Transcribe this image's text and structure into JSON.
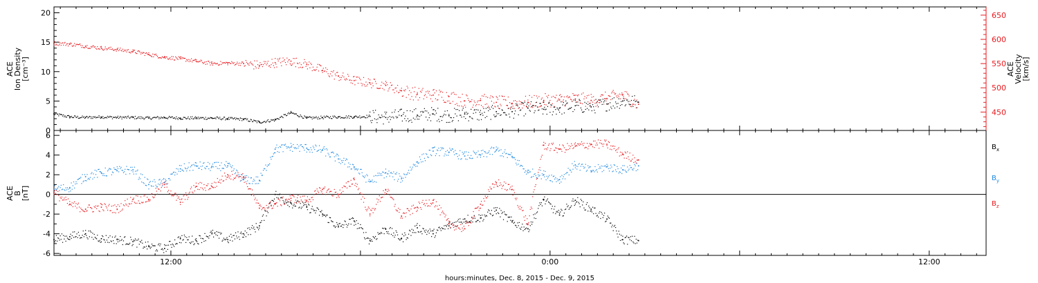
{
  "chart_data": [
    {
      "type": "scatter",
      "panel": "top",
      "ylabel_left": [
        "ACE",
        "Ion Density",
        "[cm⁻³]"
      ],
      "ylabel_right": [
        "ACE",
        "Velocity",
        "[km/s]"
      ],
      "ylim_left": [
        0,
        21
      ],
      "yticks_left": [
        "0",
        "5",
        "10",
        "15",
        "20"
      ],
      "ylim_right": [
        412,
        667
      ],
      "yticks_right": [
        "450",
        "500",
        "550",
        "600",
        "650"
      ],
      "colors": {
        "density": "#000000",
        "velocity": "#e8191e",
        "right_axis": "#e8191e"
      },
      "series": [
        {
          "axis": "left",
          "x_hours": [
            0,
            1,
            2,
            3,
            4,
            5,
            6,
            7,
            8,
            9,
            10,
            11,
            12,
            13,
            14,
            15,
            16,
            17,
            18,
            19,
            20,
            21,
            22,
            23,
            24,
            25,
            26,
            27,
            28,
            29,
            30,
            31,
            32,
            33,
            34,
            35,
            36,
            37
          ],
          "values": [
            2.8,
            2.3,
            2.2,
            2.3,
            2.2,
            2.2,
            2.1,
            2.2,
            2.1,
            2.1,
            2.1,
            2.0,
            1.9,
            1.4,
            1.8,
            3.0,
            2.1,
            2.2,
            2.3,
            2.3,
            2.4,
            2.2,
            2.5,
            2.6,
            2.8,
            2.5,
            2.8,
            2.7,
            3.2,
            3.2,
            3.8,
            3.6,
            3.8,
            4.2,
            4.0,
            4.5,
            5.0,
            4.8
          ]
        },
        {
          "axis": "right",
          "x_hours": [
            0,
            1,
            2,
            3,
            4,
            5,
            6,
            7,
            8,
            9,
            10,
            11,
            12,
            13,
            14,
            15,
            16,
            17,
            18,
            19,
            20,
            21,
            22,
            23,
            24,
            25,
            26,
            27,
            28,
            29,
            30,
            31,
            32,
            33,
            34,
            35,
            36,
            37
          ],
          "values": [
            592,
            590,
            586,
            582,
            579,
            575,
            569,
            563,
            560,
            555,
            550,
            551,
            550,
            546,
            552,
            555,
            548,
            536,
            524,
            515,
            510,
            505,
            494,
            487,
            485,
            482,
            473,
            474,
            470,
            468,
            470,
            474,
            475,
            477,
            474,
            478,
            485,
            466
          ]
        }
      ]
    },
    {
      "type": "scatter",
      "panel": "bottom",
      "ylabel_left": [
        "ACE",
        "B",
        "[nT]"
      ],
      "ylim": [
        -6.2,
        6.5
      ],
      "yticks": [
        "-6",
        "-4",
        "-2",
        "0",
        "2",
        "4",
        "6"
      ],
      "zero_line": true,
      "legend_position": "right",
      "series": [
        {
          "name": "Bx",
          "color": "#000000",
          "x_hours": [
            0,
            1,
            2,
            3,
            4,
            5,
            6,
            7,
            8,
            9,
            10,
            11,
            12,
            13,
            14,
            15,
            16,
            17,
            18,
            19,
            20,
            21,
            22,
            23,
            24,
            25,
            26,
            27,
            28,
            29,
            30,
            31,
            32,
            33,
            34,
            35,
            36,
            37
          ],
          "values": [
            -4.6,
            -4.3,
            -4.0,
            -4.5,
            -4.6,
            -4.8,
            -5.3,
            -5.5,
            -4.5,
            -4.7,
            -4.0,
            -4.6,
            -4.0,
            -3.2,
            0.0,
            -0.9,
            -1.3,
            -2.0,
            -3.3,
            -2.7,
            -4.7,
            -3.5,
            -4.5,
            -3.4,
            -4.0,
            -3.2,
            -2.5,
            -2.4,
            -1.6,
            -2.8,
            -3.5,
            -0.5,
            -2.1,
            -0.6,
            -1.5,
            -2.5,
            -4.6,
            -4.7
          ]
        },
        {
          "name": "By",
          "color": "#1e88e0",
          "x_hours": [
            0,
            1,
            2,
            3,
            4,
            5,
            6,
            7,
            8,
            9,
            10,
            11,
            12,
            13,
            14,
            15,
            16,
            17,
            18,
            19,
            20,
            21,
            22,
            23,
            24,
            25,
            26,
            27,
            28,
            29,
            30,
            31,
            32,
            33,
            34,
            35,
            36,
            37
          ],
          "values": [
            0.5,
            0.7,
            1.8,
            2.2,
            2.4,
            2.5,
            1.0,
            1.2,
            2.6,
            2.9,
            2.8,
            2.9,
            1.5,
            1.4,
            4.6,
            4.8,
            4.7,
            4.5,
            3.6,
            2.8,
            1.3,
            2.2,
            1.6,
            3.3,
            4.4,
            4.3,
            3.9,
            4.0,
            4.5,
            3.8,
            2.2,
            2.0,
            1.5,
            3.0,
            2.4,
            2.8,
            2.5,
            2.9
          ]
        },
        {
          "name": "Bz",
          "color": "#e8191e",
          "x_hours": [
            0,
            1,
            2,
            3,
            4,
            5,
            6,
            7,
            8,
            9,
            10,
            11,
            12,
            13,
            14,
            15,
            16,
            17,
            18,
            19,
            20,
            21,
            22,
            23,
            24,
            25,
            26,
            27,
            28,
            29,
            30,
            31,
            32,
            33,
            34,
            35,
            36,
            37
          ],
          "values": [
            0.2,
            -1.0,
            -1.5,
            -1.3,
            -1.5,
            -0.5,
            -0.5,
            1.0,
            -0.8,
            0.8,
            0.8,
            2.0,
            1.8,
            -1.4,
            -1.0,
            -0.4,
            -0.6,
            0.5,
            0.0,
            1.5,
            -2.0,
            0.5,
            -2.2,
            -1.3,
            -0.6,
            -3.0,
            -3.5,
            -1.0,
            1.2,
            0.5,
            -3.0,
            5.0,
            4.6,
            4.9,
            5.1,
            5.1,
            4.1,
            3.5
          ]
        }
      ],
      "legend_labels": [
        {
          "main": "B",
          "sub": "x"
        },
        {
          "main": "B",
          "sub": "y"
        },
        {
          "main": "B",
          "sub": "z"
        }
      ]
    }
  ],
  "x_axis": {
    "range_hours": [
      0,
      59
    ],
    "tick_labels": [
      {
        "hour": 7.4,
        "label": "12:00"
      },
      {
        "hour": 31.4,
        "label": "0:00"
      },
      {
        "hour": 55.4,
        "label": "12:00"
      }
    ],
    "xlabel": "hours:minutes, Dec.  8, 2015 - Dec.  9, 2015"
  }
}
